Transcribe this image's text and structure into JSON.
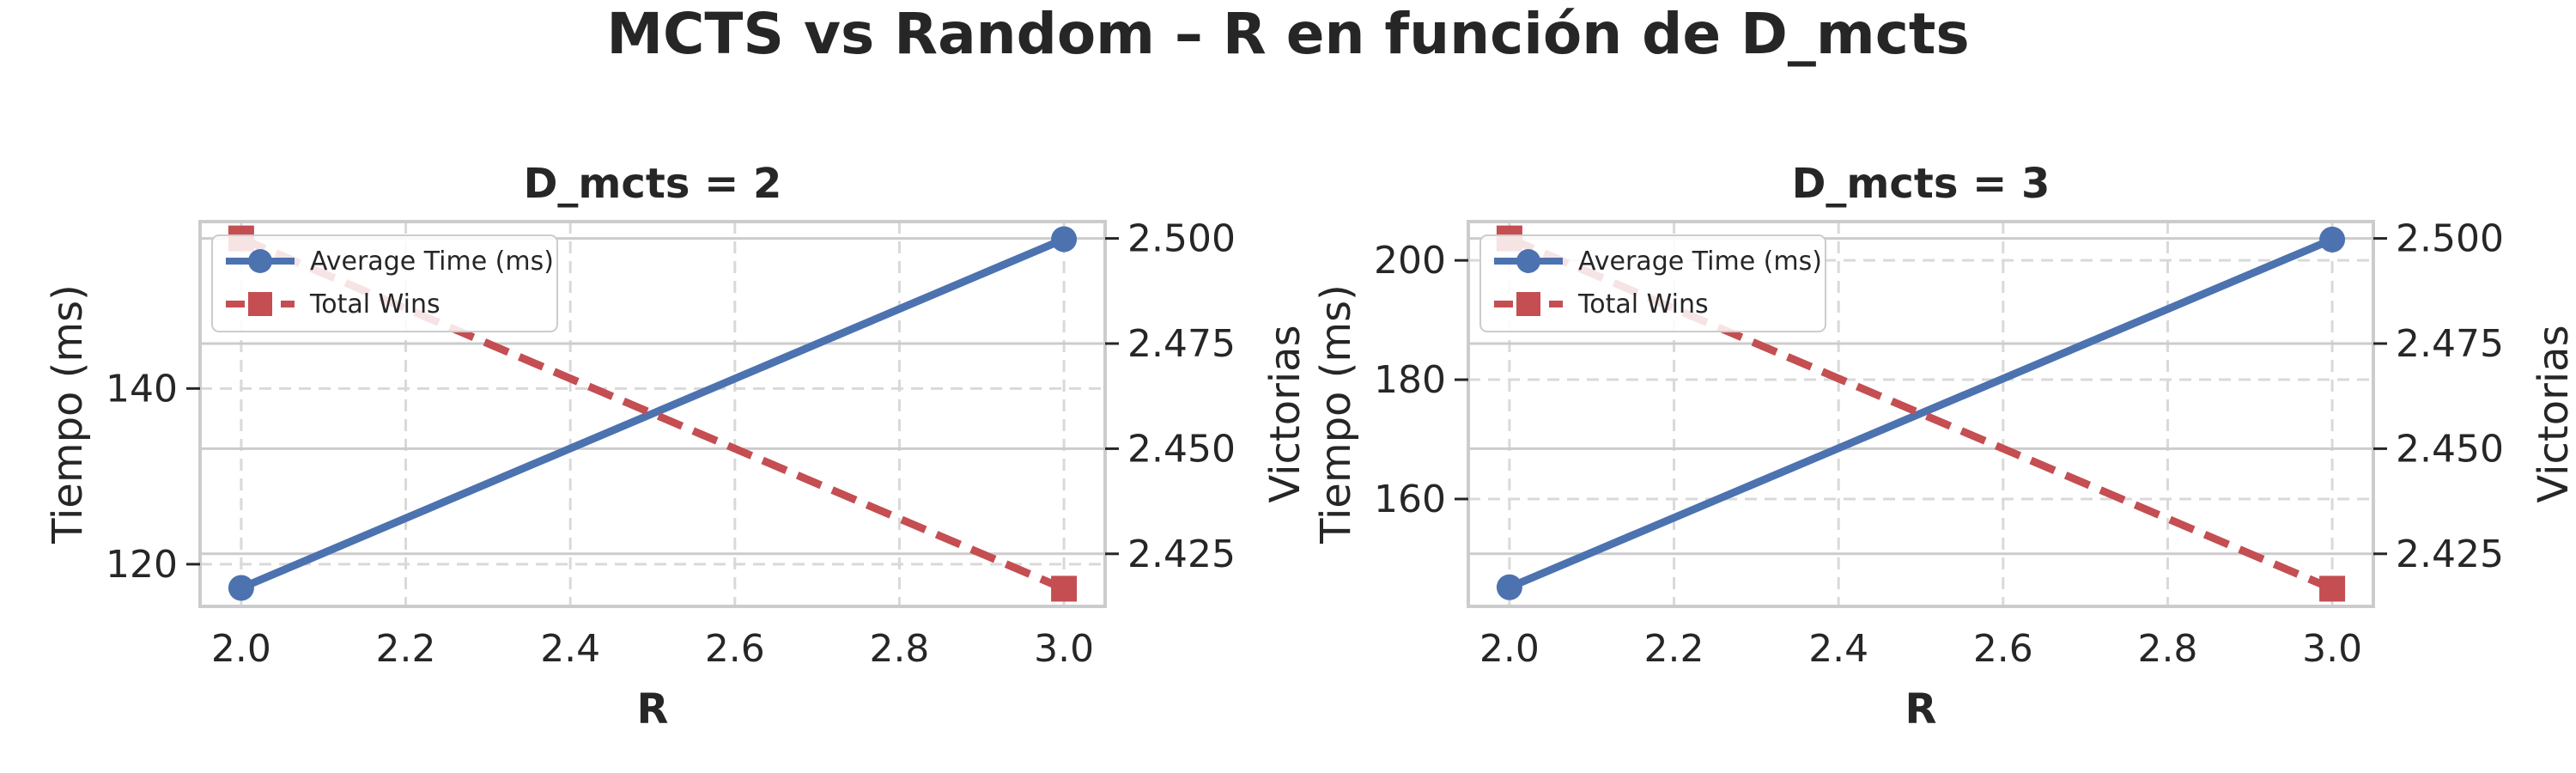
{
  "figure": {
    "title": "MCTS vs Random – R en función de D_mcts"
  },
  "colors": {
    "time_series": "#4c72b0",
    "wins_series": "#c44e52",
    "grid_major": "#d9d9d9",
    "grid_minor": "#cccccc",
    "frame": "#cccccc"
  },
  "legend": {
    "placement": "upper-left",
    "entries": [
      "Average Time (ms)",
      "Total Wins"
    ]
  },
  "chart_data": [
    {
      "type": "line",
      "title": "D_mcts = 2",
      "xlabel": "R",
      "ylabel_left": "Tiempo (ms)",
      "ylabel_right": "Victorias",
      "x": [
        2.0,
        3.0
      ],
      "xlim": [
        1.95,
        3.05
      ],
      "xticks": [
        "2.0",
        "2.2",
        "2.4",
        "2.6",
        "2.8",
        "3.0"
      ],
      "ylim_left": [
        115.2,
        159.0
      ],
      "yticks_left": [
        "120",
        "140"
      ],
      "ylim_right": [
        2.4125,
        2.504
      ],
      "yticks_right": [
        "2.425",
        "2.450",
        "2.475",
        "2.500"
      ],
      "series": [
        {
          "name": "Average Time (ms)",
          "axis": "left",
          "values": [
            117.3,
            157.0
          ],
          "marker": "circle",
          "linestyle": "solid"
        },
        {
          "name": "Total Wins",
          "axis": "right",
          "values": [
            2.5,
            2.4167
          ],
          "marker": "square",
          "linestyle": "dashed"
        }
      ],
      "grid": true
    },
    {
      "type": "line",
      "title": "D_mcts = 3",
      "xlabel": "R",
      "ylabel_left": "Tiempo (ms)",
      "ylabel_right": "Victorias",
      "x": [
        2.0,
        3.0
      ],
      "xlim": [
        1.95,
        3.05
      ],
      "xticks": [
        "2.0",
        "2.2",
        "2.4",
        "2.6",
        "2.8",
        "3.0"
      ],
      "ylim_left": [
        142.0,
        206.5
      ],
      "yticks_left": [
        "160",
        "180",
        "200"
      ],
      "ylim_right": [
        2.4125,
        2.504
      ],
      "yticks_right": [
        "2.425",
        "2.450",
        "2.475",
        "2.500"
      ],
      "series": [
        {
          "name": "Average Time (ms)",
          "axis": "left",
          "values": [
            145.2,
            203.5
          ],
          "marker": "circle",
          "linestyle": "solid"
        },
        {
          "name": "Total Wins",
          "axis": "right",
          "values": [
            2.5,
            2.4167
          ],
          "marker": "square",
          "linestyle": "dashed"
        }
      ],
      "grid": true
    }
  ]
}
